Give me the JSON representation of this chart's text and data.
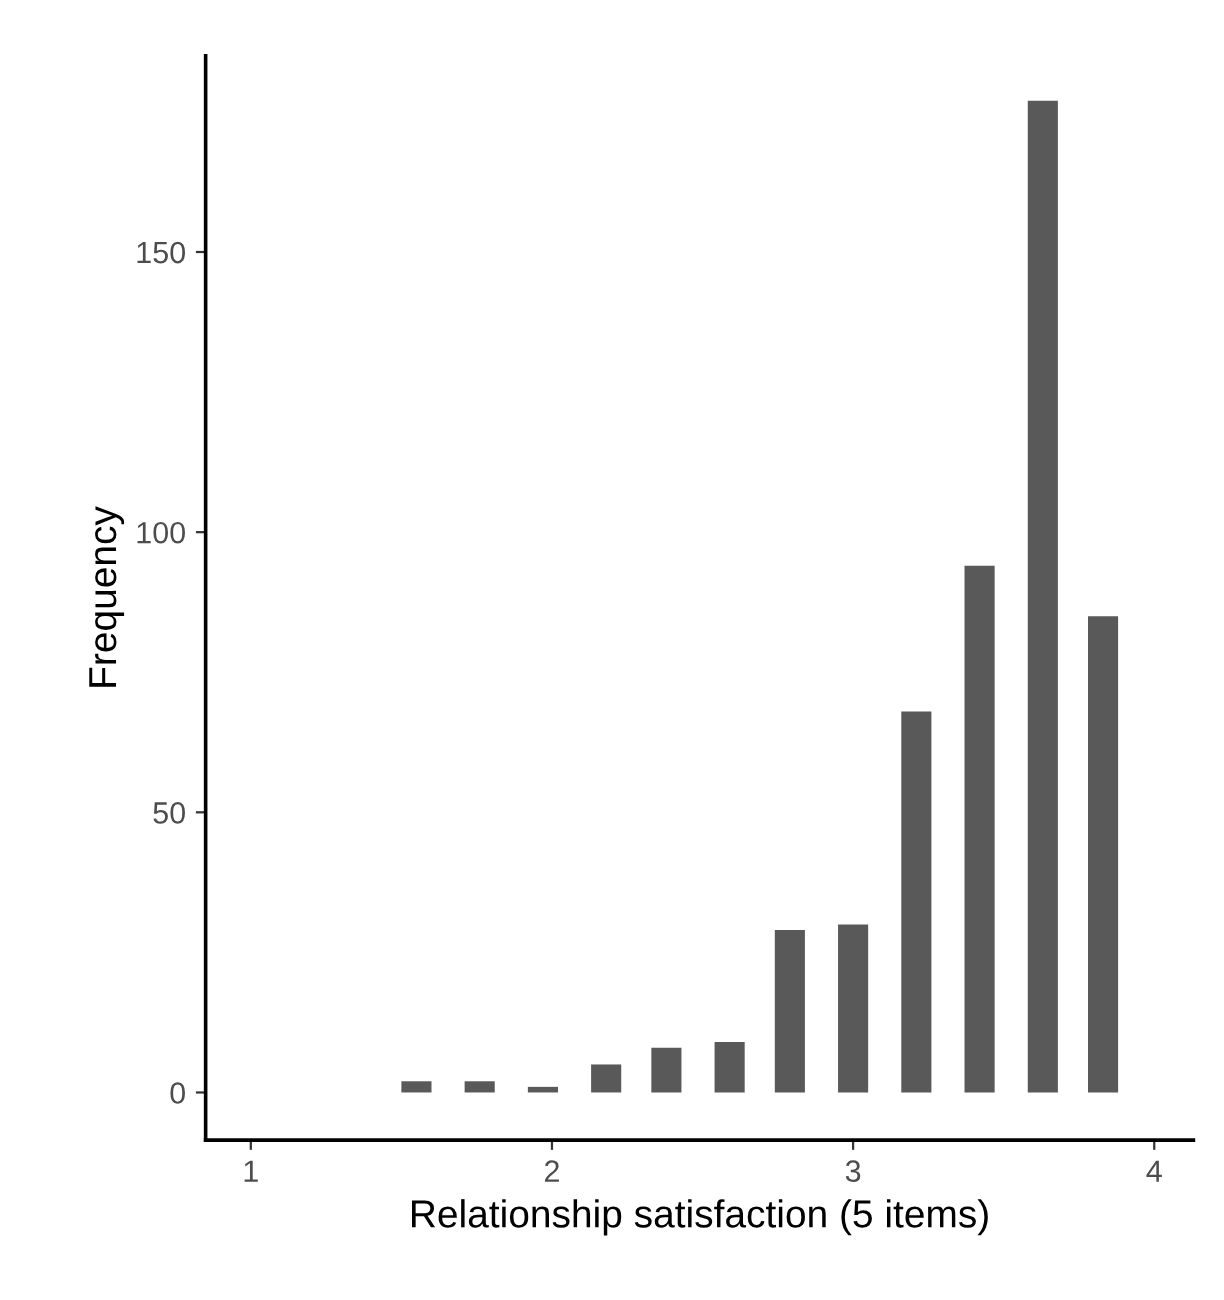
{
  "chart_data": {
    "type": "bar",
    "xlabel": "Relationship satisfaction (5 items)",
    "ylabel": "Frequency",
    "x": [
      1.55,
      1.76,
      1.97,
      2.18,
      2.38,
      2.59,
      2.79,
      3.0,
      3.21,
      3.42,
      3.63,
      3.83
    ],
    "values": [
      2,
      2,
      1,
      5,
      8,
      9,
      29,
      30,
      68,
      94,
      177,
      85
    ],
    "color": "#595959",
    "xlim": [
      0.85,
      4.13
    ],
    "ylim": [
      -8.5,
      185
    ],
    "xticks": [
      1,
      2,
      3,
      4
    ],
    "yticks": [
      0,
      50,
      100,
      150
    ],
    "grid": false
  }
}
